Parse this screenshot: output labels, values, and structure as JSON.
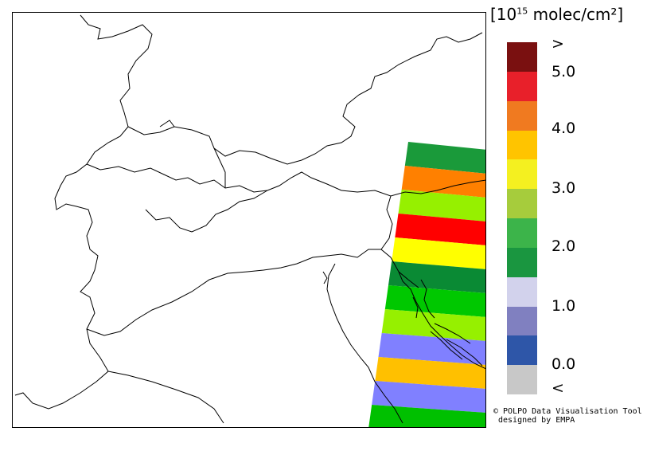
{
  "legend": {
    "unit_prefix": "[10",
    "unit_exp": "15",
    "unit_suffix": " molec/cm²]",
    "ticks": [
      ">",
      "5.0",
      "4.0",
      "3.0",
      "2.0",
      "1.0",
      "0.0",
      "<"
    ],
    "classes": [
      {
        "label": "above max",
        "color": "#7a1010"
      },
      {
        "label": "5.0-5.5",
        "color": "#e8202a"
      },
      {
        "label": "4.5-5.0",
        "color": "#f07a20"
      },
      {
        "label": "4.0-4.5",
        "color": "#ffc400"
      },
      {
        "label": "3.5-4.0",
        "color": "#f4f020"
      },
      {
        "label": "3.0-3.5",
        "color": "#a6cc3c"
      },
      {
        "label": "2.5-3.0",
        "color": "#3cb44a"
      },
      {
        "label": "2.0-2.5",
        "color": "#1a9640"
      },
      {
        "label": "1.5-2.0",
        "color": "#d2d2ec"
      },
      {
        "label": "1.0-1.5",
        "color": "#8080c0"
      },
      {
        "label": "0.5-1.0",
        "color": "#2e56a8"
      },
      {
        "label": "below min",
        "color": "#c8c8c8"
      }
    ]
  },
  "swath_rows": [
    {
      "value_class": "2.5-3.0",
      "color": "#1a9a3a"
    },
    {
      "value_class": "4.5-5.0",
      "color": "#ff8000"
    },
    {
      "value_class": "3.0-3.5",
      "color": "#96f000"
    },
    {
      "value_class": "5.0-5.5",
      "color": "#ff0000"
    },
    {
      "value_class": "3.5-4.0",
      "color": "#ffff00"
    },
    {
      "value_class": "2.0-2.5",
      "color": "#0a8a34"
    },
    {
      "value_class": "2.5-3.0",
      "color": "#00c800"
    },
    {
      "value_class": "3.0-3.5",
      "color": "#96f000"
    },
    {
      "value_class": "1.0-1.5",
      "color": "#8080ff"
    },
    {
      "value_class": "4.0-4.5",
      "color": "#ffc000"
    },
    {
      "value_class": "1.0-1.5",
      "color": "#8080ff"
    },
    {
      "value_class": "2.5-3.0",
      "color": "#00c000"
    }
  ],
  "credit": {
    "line1": "© POLPO Data Visualisation Tool",
    "line2": "designed by EMPA"
  }
}
